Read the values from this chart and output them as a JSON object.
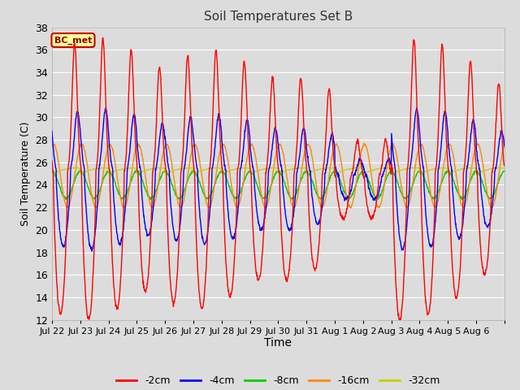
{
  "title": "Soil Temperatures Set B",
  "xlabel": "Time",
  "ylabel": "Soil Temperature (C)",
  "ylim": [
    12,
    38
  ],
  "yticks": [
    12,
    14,
    16,
    18,
    20,
    22,
    24,
    26,
    28,
    30,
    32,
    34,
    36,
    38
  ],
  "colors": {
    "-2cm": "#ff0000",
    "-4cm": "#0000ff",
    "-8cm": "#00cc00",
    "-16cm": "#ff8800",
    "-32cm": "#cccc00"
  },
  "legend_labels": [
    "-2cm",
    "-4cm",
    "-8cm",
    "-16cm",
    "-32cm"
  ],
  "annotation_text": "BC_met",
  "annotation_facecolor": "#ffff99",
  "annotation_edgecolor": "#cc0000",
  "xtick_labels": [
    "Jul 22",
    "Jul 23",
    "Jul 24",
    "Jul 25",
    "Jul 26",
    "Jul 27",
    "Jul 28",
    "Jul 29",
    "Jul 30",
    "Jul 31",
    "Aug 1",
    "Aug 2",
    "Aug 3",
    "Aug 4",
    "Aug 5",
    "Aug 6"
  ],
  "bg_color": "#dcdcdc",
  "grid_color": "#ffffff",
  "n_days": 16,
  "points_per_day": 96
}
